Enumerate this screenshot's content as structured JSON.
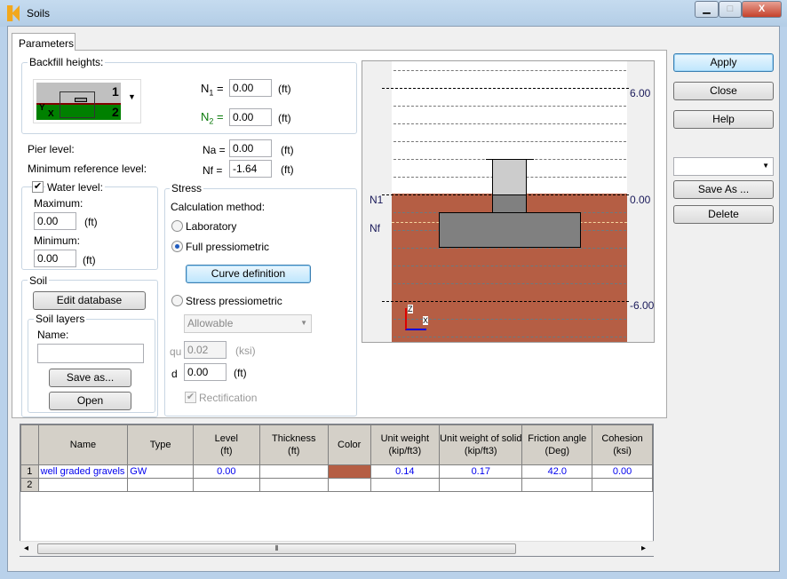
{
  "window": {
    "title": "Soils",
    "minimize": "▁",
    "maximize": "□",
    "close": "X"
  },
  "tabs": [
    {
      "label": "Parameters"
    }
  ],
  "backfill": {
    "label": "Backfill heights:",
    "preview_labels": [
      "1",
      "2"
    ],
    "axis_y": "Y",
    "axis_x": "X",
    "n1": {
      "label": "N",
      "sub": "1",
      "eq": "=",
      "value": "0.00",
      "unit": "(ft)"
    },
    "n2": {
      "label": "N",
      "sub": "2",
      "eq": "=",
      "value": "0.00",
      "unit": "(ft)"
    }
  },
  "pier": {
    "label": "Pier level:",
    "symbol": "Na =",
    "value": "0.00",
    "unit": "(ft)"
  },
  "minref": {
    "label": "Minimum reference level:",
    "symbol": "Nf =",
    "value": "-1.64",
    "unit": "(ft)"
  },
  "water": {
    "label": "Water level:",
    "checked": true,
    "max_label": "Maximum:",
    "max_value": "0.00",
    "min_label": "Minimum:",
    "min_value": "0.00",
    "unit": "(ft)"
  },
  "soil": {
    "label": "Soil",
    "edit_db": "Edit database",
    "layers_label": "Soil layers",
    "name_label": "Name:",
    "name_value": "",
    "save_as": "Save as...",
    "open": "Open"
  },
  "stress": {
    "label": "Stress",
    "method_label": "Calculation method:",
    "laboratory": "Laboratory",
    "full": "Full pressiometric",
    "selected": "Full pressiometric",
    "curve": "Curve definition",
    "stress_press": "Stress pressiometric",
    "dropdown": "Allowable",
    "qu_label": "qu",
    "qu_value": "0.02",
    "qu_unit": "(ksi)",
    "d_label": "d",
    "d_value": "0.00",
    "d_unit": "(ft)",
    "rect": "Rectification",
    "rect_checked": true
  },
  "drawing": {
    "labels_left": [
      "N1",
      "Nf"
    ],
    "labels_right": [
      "6.00",
      "0.00",
      "-6.00"
    ],
    "axis_z": "Z",
    "axis_x": "X",
    "soil_color": "#b55e44"
  },
  "buttons": {
    "apply": "Apply",
    "close": "Close",
    "help": "Help",
    "dropdown": "",
    "save_as": "Save As ...",
    "delete": "Delete"
  },
  "table": {
    "headers": [
      [
        "Name",
        ""
      ],
      [
        "Type",
        ""
      ],
      [
        "Level",
        "(ft)"
      ],
      [
        "Thickness",
        "(ft)"
      ],
      [
        "Color",
        ""
      ],
      [
        "Unit weight",
        "(kip/ft3)"
      ],
      [
        "Unit weight of solid",
        "(kip/ft3)"
      ],
      [
        "Friction angle",
        "(Deg)"
      ],
      [
        "Cohesion",
        "(ksi)"
      ]
    ],
    "rows": [
      {
        "n": "1",
        "name": "well graded gravels",
        "type": "GW",
        "level": "0.00",
        "thickness": "",
        "color": "#b55e44",
        "uw": "0.14",
        "uws": "0.17",
        "phi": "42.0",
        "c": "0.00"
      },
      {
        "n": "2",
        "name": "",
        "type": "",
        "level": "",
        "thickness": "",
        "color": "",
        "uw": "",
        "uws": "",
        "phi": "",
        "c": ""
      }
    ]
  },
  "scrollbar": {
    "left": "◂",
    "right": "▸",
    "thumb": "⦀"
  }
}
